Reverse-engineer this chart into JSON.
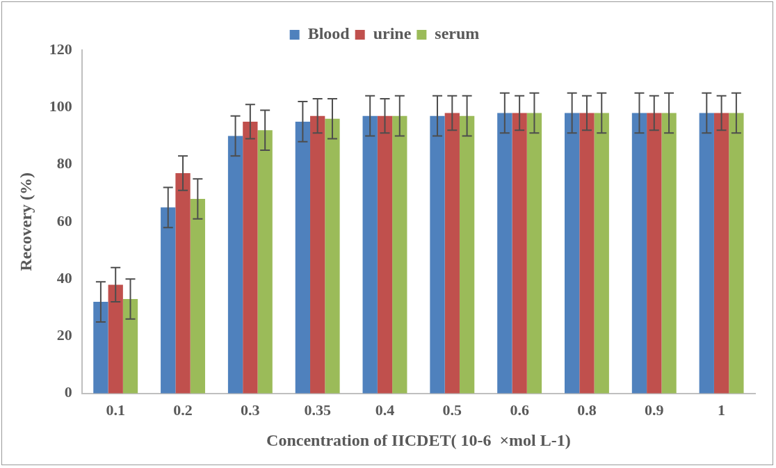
{
  "chart_data": {
    "type": "bar",
    "xlabel": "Concentration of IICDET( 10-6  ×mol L-1)",
    "ylabel": "Recovery (%)",
    "categories": [
      "0.1",
      "0.2",
      "0.3",
      "0.35",
      "0.4",
      "0.5",
      "0.6",
      "0.8",
      "0.9",
      "1"
    ],
    "series": [
      {
        "name": "Blood",
        "color": "#4f81bd",
        "values": [
          32,
          65,
          90,
          95,
          97,
          97,
          98,
          98,
          98,
          98
        ],
        "errors": [
          7,
          7,
          7,
          7,
          7,
          7,
          7,
          7,
          7,
          7
        ]
      },
      {
        "name": "urine",
        "color": "#c0504d",
        "values": [
          38,
          77,
          95,
          97,
          97,
          98,
          98,
          98,
          98,
          98
        ],
        "errors": [
          6,
          6,
          6,
          6,
          6,
          6,
          6,
          6,
          6,
          6
        ]
      },
      {
        "name": "serum",
        "color": "#9bbb59",
        "values": [
          33,
          68,
          92,
          96,
          97,
          97,
          98,
          98,
          98,
          98
        ],
        "errors": [
          7,
          7,
          7,
          7,
          7,
          7,
          7,
          7,
          7,
          7
        ]
      }
    ],
    "ylim": [
      0,
      120
    ],
    "yticks": [
      0,
      20,
      40,
      60,
      80,
      100,
      120
    ],
    "grid": false,
    "legend": "top"
  }
}
